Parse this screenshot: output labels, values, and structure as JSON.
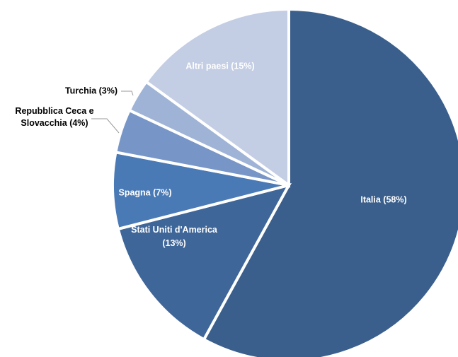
{
  "chart_data": {
    "type": "pie",
    "start": "12 o'clock",
    "direction": "clockwise",
    "legend": "none",
    "slices": [
      {
        "label": "Italia (58%)",
        "value": 58,
        "color": "#3a5f8c"
      },
      {
        "label": "Stati Uniti d'America (13%)",
        "lines": [
          "Stati Uniti d'America",
          "(13%)"
        ],
        "value": 13,
        "color": "#3f6699"
      },
      {
        "label": "Spagna (7%)",
        "value": 7,
        "color": "#4a7ab5"
      },
      {
        "label": "Repubblica Ceca e Slovacchia (4%)",
        "lines": [
          "Repubblica Ceca e",
          "Slovacchia (4%)"
        ],
        "value": 4,
        "color": "#7795c6"
      },
      {
        "label": "Turchia (3%)",
        "value": 3,
        "color": "#9fb3d6"
      },
      {
        "label": "Altri paesi (15%)",
        "value": 15,
        "color": "#c3cde3"
      }
    ]
  }
}
